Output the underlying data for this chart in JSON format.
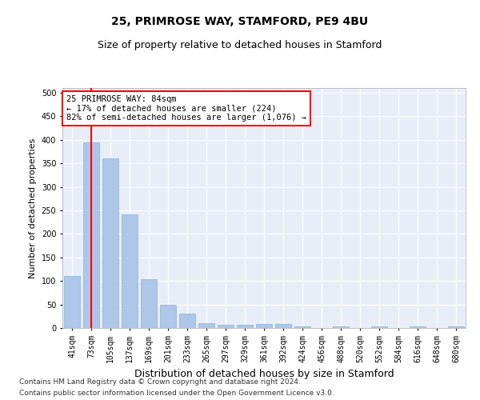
{
  "title1": "25, PRIMROSE WAY, STAMFORD, PE9 4BU",
  "title2": "Size of property relative to detached houses in Stamford",
  "xlabel": "Distribution of detached houses by size in Stamford",
  "ylabel": "Number of detached properties",
  "categories": [
    "41sqm",
    "73sqm",
    "105sqm",
    "137sqm",
    "169sqm",
    "201sqm",
    "233sqm",
    "265sqm",
    "297sqm",
    "329sqm",
    "361sqm",
    "392sqm",
    "424sqm",
    "456sqm",
    "488sqm",
    "520sqm",
    "552sqm",
    "584sqm",
    "616sqm",
    "648sqm",
    "680sqm"
  ],
  "values": [
    110,
    395,
    360,
    242,
    103,
    50,
    30,
    10,
    7,
    7,
    8,
    8,
    4,
    0,
    4,
    0,
    4,
    0,
    4,
    0,
    4
  ],
  "bar_color": "#aec6e8",
  "bar_edge_color": "#8ab4d8",
  "vline_x": 1.0,
  "vline_color": "red",
  "annotation_line1": "25 PRIMROSE WAY: 84sqm",
  "annotation_line2": "← 17% of detached houses are smaller (224)",
  "annotation_line3": "82% of semi-detached houses are larger (1,076) →",
  "annotation_box_color": "white",
  "annotation_box_edge_color": "red",
  "ylim": [
    0,
    510
  ],
  "yticks": [
    0,
    50,
    100,
    150,
    200,
    250,
    300,
    350,
    400,
    450,
    500
  ],
  "bg_color": "#e8eef7",
  "footnote1": "Contains HM Land Registry data © Crown copyright and database right 2024.",
  "footnote2": "Contains public sector information licensed under the Open Government Licence v3.0.",
  "title1_fontsize": 10,
  "title2_fontsize": 9,
  "xlabel_fontsize": 9,
  "ylabel_fontsize": 8,
  "tick_fontsize": 7,
  "annot_fontsize": 7.5
}
